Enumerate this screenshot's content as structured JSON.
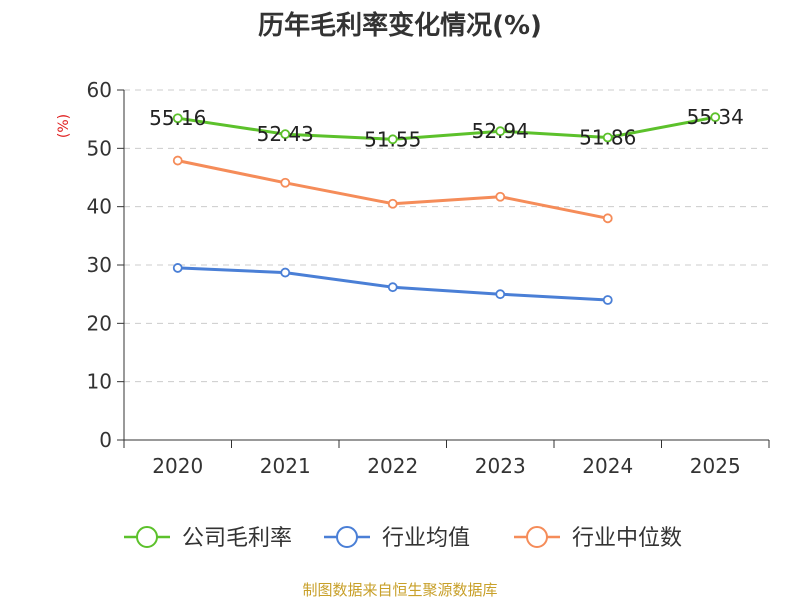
{
  "chart_data": {
    "type": "line",
    "title": "历年毛利率变化情况(%)",
    "ylabel": "(%)",
    "xlabel": "",
    "categories": [
      "2020",
      "2021",
      "2022",
      "2023",
      "2024",
      "2025"
    ],
    "ylim": [
      0,
      60
    ],
    "yticks": [
      "0",
      "10",
      "20",
      "30",
      "40",
      "50",
      "60"
    ],
    "grid": true,
    "legend_position": "bottom",
    "series": [
      {
        "name": "公司毛利率",
        "color": "#5cc12b",
        "values": [
          55.16,
          52.43,
          51.55,
          52.94,
          51.86,
          55.34
        ],
        "labels": [
          "55.16",
          "52.43",
          "51.55",
          "52.94",
          "51.86",
          "55.34"
        ]
      },
      {
        "name": "行业均值",
        "color": "#4a7fd6",
        "values": [
          29.5,
          28.7,
          26.2,
          25.0,
          24.0,
          null
        ]
      },
      {
        "name": "行业中位数",
        "color": "#f58c59",
        "values": [
          47.9,
          44.1,
          40.5,
          41.7,
          38.0,
          null
        ]
      }
    ],
    "source": "制图数据来自恒生聚源数据库"
  }
}
